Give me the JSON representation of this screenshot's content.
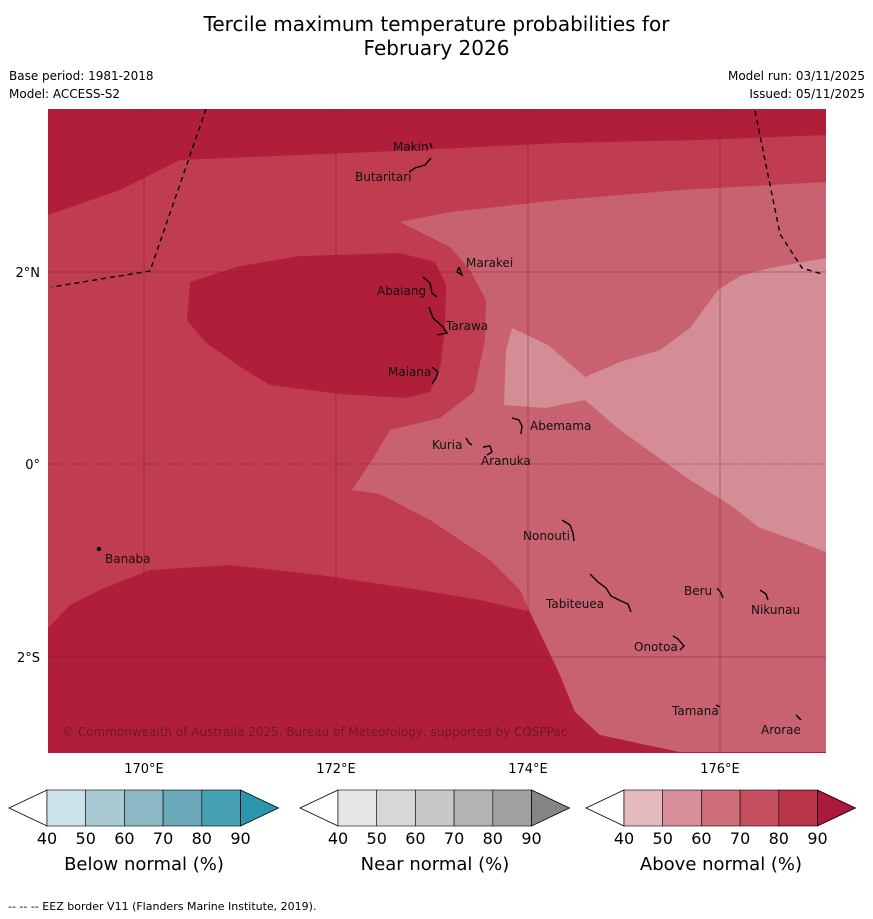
{
  "title": {
    "line1": "Tercile maximum temperature probabilities for",
    "line2": "February 2026"
  },
  "meta": {
    "base_period": "Base period: 1981-2018",
    "model": "Model: ACCESS-S2",
    "model_run": "Model run: 03/11/2025",
    "issued": "Issued: 05/11/2025"
  },
  "axes": {
    "lat_labels": [
      "2°N",
      "0°",
      "2°S"
    ],
    "lon_labels": [
      "170°E",
      "172°E",
      "174°E",
      "176°E"
    ]
  },
  "copyright": "© Commonwealth of Australia 2025, Bureau of Meteorology, supported by COSPPac",
  "places": [
    {
      "name": "Makin"
    },
    {
      "name": "Butaritari"
    },
    {
      "name": "Marakei"
    },
    {
      "name": "Abaiang"
    },
    {
      "name": "Tarawa"
    },
    {
      "name": "Maiana"
    },
    {
      "name": "Abemama"
    },
    {
      "name": "Kuria"
    },
    {
      "name": "Aranuka"
    },
    {
      "name": "Nonouti"
    },
    {
      "name": "Banaba"
    },
    {
      "name": "Tabiteuea"
    },
    {
      "name": "Beru"
    },
    {
      "name": "Nikunau"
    },
    {
      "name": "Onotoa"
    },
    {
      "name": "Tamana"
    },
    {
      "name": "Arorae"
    }
  ],
  "colorbars": [
    {
      "name": "Below normal (%)",
      "ticks": [
        "40",
        "50",
        "60",
        "70",
        "80",
        "90"
      ],
      "colors": [
        "#cde3ea",
        "#a9cad3",
        "#8bb8c4",
        "#6aa9b9",
        "#47a1b3",
        "#2b95ad"
      ]
    },
    {
      "name": "Near normal (%)",
      "ticks": [
        "40",
        "50",
        "60",
        "70",
        "80",
        "90"
      ],
      "colors": [
        "#e6e6e6",
        "#d8d8d8",
        "#c8c8c8",
        "#b4b4b4",
        "#a0a0a0",
        "#858585"
      ]
    },
    {
      "name": "Above normal (%)",
      "ticks": [
        "40",
        "50",
        "60",
        "70",
        "80",
        "90"
      ],
      "colors": [
        "#e4b9c0",
        "#d9909b",
        "#cf6e7b",
        "#c6505f",
        "#b8354a",
        "#ab1a3a"
      ]
    }
  ],
  "footnote": "--  --  -- EEZ border V11 (Flanders Marine Institute, 2019).",
  "palette": {
    "above_90": "#b01e3a",
    "above_80": "#c03d4f",
    "above_70": "#c96270",
    "above_60": "#d48c96"
  }
}
